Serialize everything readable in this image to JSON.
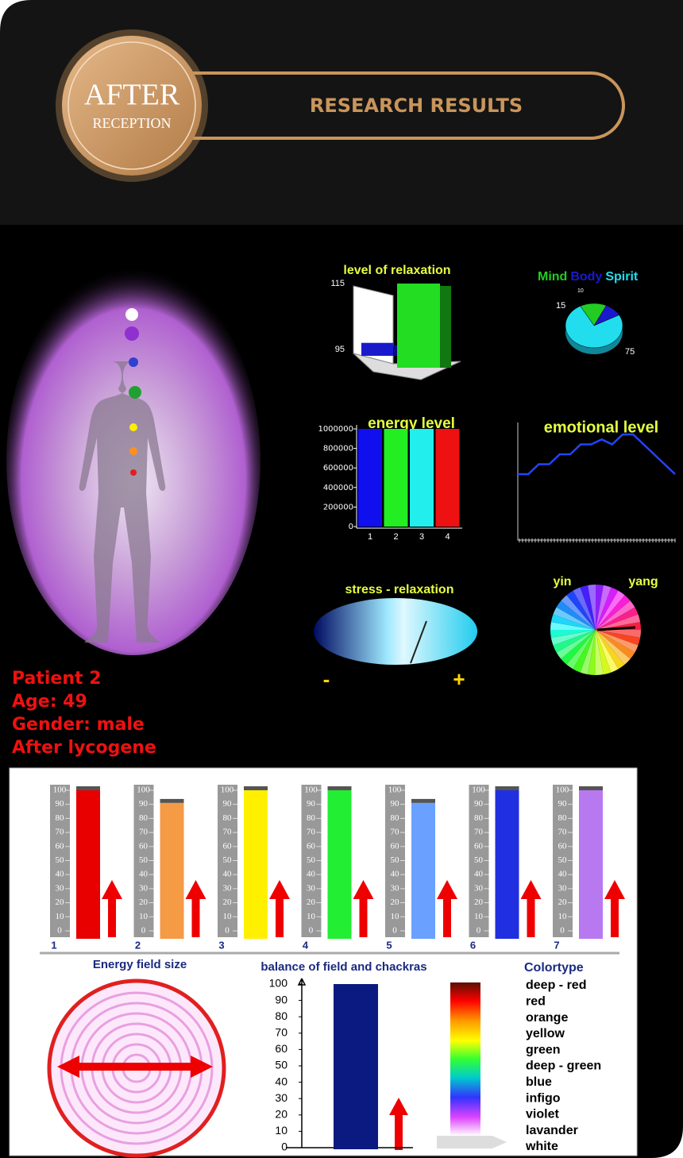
{
  "header": {
    "badge_line1": "AFTER",
    "badge_line2": "RECEPTION",
    "title": "RESEARCH RESULTS"
  },
  "relaxation": {
    "title": "level of relaxation",
    "yticks": [
      95,
      115
    ],
    "values": [
      97,
      115
    ],
    "colors": [
      "#1a1acc",
      "#22dd22"
    ]
  },
  "mind_body_spirit": {
    "labels": [
      "Mind",
      "Body",
      "Spirit"
    ],
    "colors": [
      "#22cc22",
      "#1a1acc",
      "#22ddee"
    ],
    "values": [
      15,
      10,
      75
    ],
    "value_labels": [
      "15",
      "10",
      "75"
    ]
  },
  "energy": {
    "title": "energy level",
    "ylim": [
      0,
      1000000
    ],
    "yticks": [
      0,
      200000,
      400000,
      600000,
      800000,
      1000000
    ],
    "categories": [
      "1",
      "2",
      "3",
      "4"
    ],
    "values": [
      1000000,
      1000000,
      1000000,
      1000000
    ],
    "colors": [
      "#1010ee",
      "#22ee22",
      "#22eeee",
      "#ee1111"
    ]
  },
  "emotional": {
    "title": "emotional level",
    "ylim": [
      0,
      10
    ],
    "values": [
      6,
      6,
      7,
      7,
      8,
      8,
      9,
      9,
      9.5,
      9,
      10,
      10,
      9,
      8,
      7,
      6
    ]
  },
  "stress": {
    "title": "stress - relaxation",
    "minus": "-",
    "plus": "+"
  },
  "yinyang": {
    "yin": "yin",
    "yang": "yang"
  },
  "patient": [
    "Patient 2",
    "Age: 49",
    "Gender: male",
    "After lycogene"
  ],
  "chakras": {
    "ylim": [
      0,
      100
    ],
    "yticks": [
      0,
      10,
      20,
      30,
      40,
      50,
      60,
      70,
      80,
      90,
      100
    ],
    "labels": [
      "1",
      "2",
      "3",
      "4",
      "5",
      "6",
      "7"
    ],
    "values": [
      100,
      91,
      100,
      100,
      91,
      100,
      100
    ],
    "colors": [
      "#e80000",
      "#f59a45",
      "#fff000",
      "#22ee33",
      "#6aa0ff",
      "#2030e0",
      "#b878f0"
    ]
  },
  "field": {
    "title": "Energy field size"
  },
  "balance": {
    "title": "balance of field and chackras",
    "ylim": [
      0,
      100
    ],
    "yticks": [
      0,
      10,
      20,
      30,
      40,
      50,
      60,
      70,
      80,
      90,
      100
    ],
    "value": 100,
    "color": "#0a1a80"
  },
  "colortype": {
    "title": "Colortype",
    "items": [
      "deep - red",
      "red",
      "orange",
      "yellow",
      "green",
      "deep - green",
      "blue",
      "infigo",
      "violet",
      "lavander",
      "white"
    ]
  }
}
